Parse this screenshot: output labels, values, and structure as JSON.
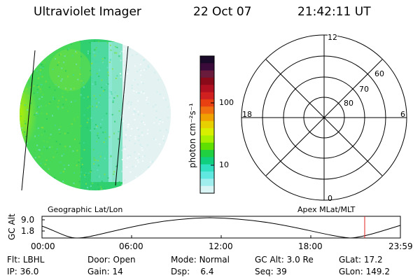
{
  "header": {
    "title": "Ultraviolet Imager",
    "date": "22 Oct 07",
    "time": "21:42:11 UT"
  },
  "colorbar": {
    "label": "photon cm⁻²s⁻¹",
    "ticks": [
      "100",
      "10"
    ],
    "colors": [
      "#1a0a2a",
      "#3a0a3a",
      "#6a1a3a",
      "#8a0a1a",
      "#b01020",
      "#d02020",
      "#e84010",
      "#f07010",
      "#f0a000",
      "#e8d000",
      "#d8f000",
      "#a8f000",
      "#60e000",
      "#20d040",
      "#10d080",
      "#30e0c0",
      "#60e8e0",
      "#a0eeee",
      "#d8f4f4"
    ]
  },
  "geo_image": {
    "label": "Geographic Lat/Lon"
  },
  "polar_plot": {
    "label": "Apex MLat/MLT",
    "mlt_labels": {
      "top": "12",
      "left": "18",
      "right": "6",
      "bottom": "0"
    },
    "lat_labels": [
      "60",
      "70",
      "80"
    ]
  },
  "altitude_plot": {
    "ylabel": "GC Alt",
    "yticks": [
      "9.0",
      "1.8"
    ],
    "xticks": [
      "00:00",
      "06:00",
      "12:00",
      "18:00",
      "23:59"
    ],
    "marker_color": "#e02020"
  },
  "status": {
    "row1": [
      {
        "label": "Flt:",
        "value": "LBHL"
      },
      {
        "label": "Door:",
        "value": "Open"
      },
      {
        "label": "Mode:",
        "value": "Normal"
      },
      {
        "label": "GC Alt:",
        "value": "3.0 Re"
      },
      {
        "label": "GLat:",
        "value": "17.2"
      }
    ],
    "row2": [
      {
        "label": "IP:",
        "value": "36.0"
      },
      {
        "label": "Gain:",
        "value": "14"
      },
      {
        "label": "Dsp:",
        "value": "6.4"
      },
      {
        "label": "Seq:",
        "value": "39"
      },
      {
        "label": "GLon:",
        "value": "149.2"
      }
    ]
  }
}
